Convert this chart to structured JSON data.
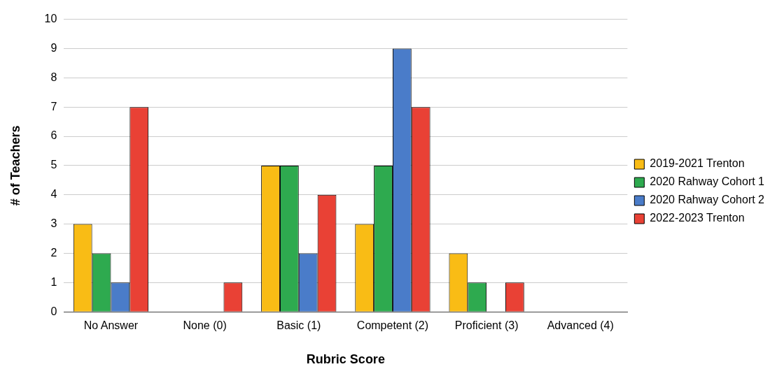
{
  "chart_data": {
    "type": "bar",
    "xlabel": "Rubric Score",
    "ylabel": "# of Teachers",
    "categories": [
      "No Answer",
      "None (0)",
      "Basic (1)",
      "Competent (2)",
      "Proficient (3)",
      "Advanced (4)"
    ],
    "series": [
      {
        "name": "2019-2021 Trenton",
        "color": "#f9bc15",
        "values": [
          3,
          0,
          5,
          3,
          2,
          0
        ]
      },
      {
        "name": "2020 Rahway Cohort 1",
        "color": "#2eaa4f",
        "values": [
          2,
          0,
          5,
          5,
          1,
          0
        ]
      },
      {
        "name": "2020 Rahway Cohort 2",
        "color": "#4a7cc9",
        "values": [
          1,
          0,
          2,
          9,
          0,
          0
        ]
      },
      {
        "name": "2022-2023 Trenton",
        "color": "#e94135",
        "values": [
          7,
          1,
          4,
          7,
          1,
          0
        ]
      }
    ],
    "ylim": [
      0,
      10
    ],
    "yticks": [
      0,
      1,
      2,
      3,
      4,
      5,
      6,
      7,
      8,
      9,
      10
    ],
    "grid": "y",
    "legend": "right"
  }
}
